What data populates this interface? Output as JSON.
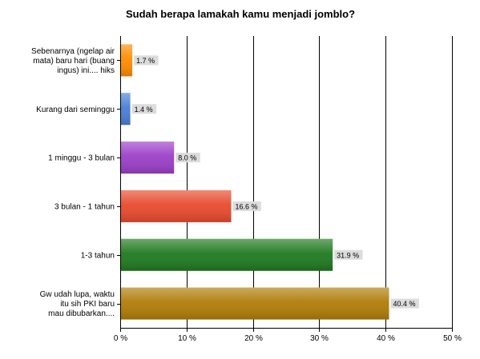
{
  "chart_data": {
    "type": "bar",
    "orientation": "horizontal",
    "title": "Sudah berapa lamakah kamu menjadi jomblo?",
    "categories": [
      [
        "Sebenarnya (ngelap air",
        "mata) baru hari (buang",
        "ingus) ini.... hiks"
      ],
      [
        "Kurang dari seminggu"
      ],
      [
        "1 minggu - 3 bulan"
      ],
      [
        "3 bulan - 1 tahun"
      ],
      [
        "1-3 tahun"
      ],
      [
        "Gw udah lupa, waktu",
        "itu sih PKI baru",
        "mau dibubarkan...."
      ]
    ],
    "values": [
      1.7,
      1.4,
      8.0,
      16.6,
      31.9,
      40.4
    ],
    "value_labels": [
      "1.7 %",
      "1.4 %",
      "8.0 %",
      "16.6 %",
      "31.9 %",
      "40.4 %"
    ],
    "colors": [
      "#ff8c00",
      "#4a7fd4",
      "#9b3fc8",
      "#e84a2e",
      "#1f7a1f",
      "#b07d08"
    ],
    "xlim": [
      0,
      50
    ],
    "ticks": [
      0,
      10,
      20,
      30,
      40,
      50
    ],
    "tick_labels": [
      "0 %",
      "10 %",
      "20 %",
      "30 %",
      "40 %",
      "50 %"
    ],
    "grid": true,
    "legend": "none"
  }
}
